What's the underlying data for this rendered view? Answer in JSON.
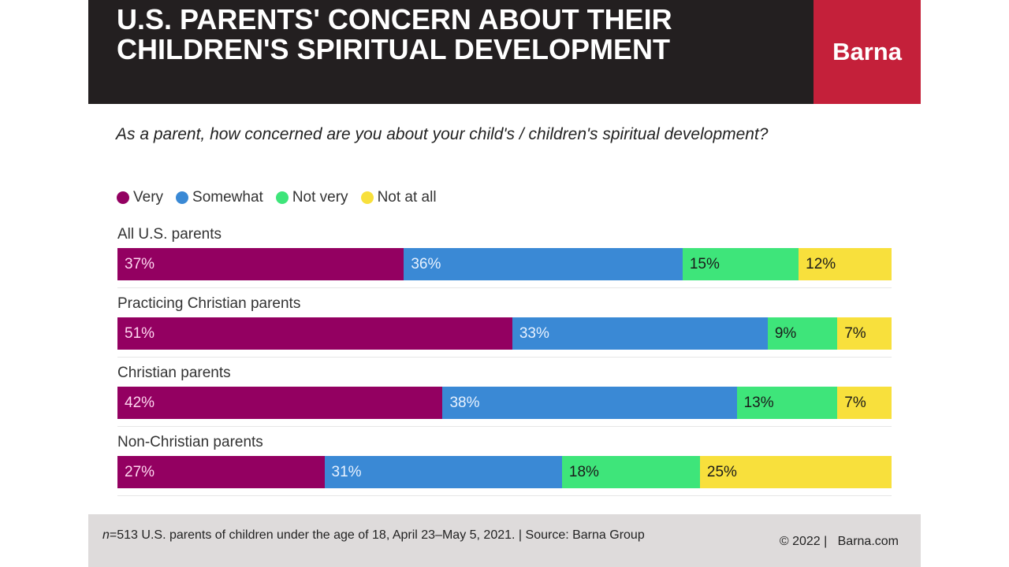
{
  "header": {
    "title": "U.S. PARENTS' CONCERN ABOUT THEIR CHILDREN'S SPIRITUAL DEVELOPMENT",
    "brand": "Barna"
  },
  "chart_data": {
    "type": "bar",
    "orientation": "horizontal-stacked-100",
    "title": "U.S. PARENTS' CONCERN ABOUT THEIR CHILDREN'S SPIRITUAL DEVELOPMENT",
    "subtitle": "As a parent, how concerned are you about your child's / children's spiritual development?",
    "categories": [
      "All U.S. parents",
      "Practicing Christian parents",
      "Christian parents",
      "Non-Christian parents"
    ],
    "series": [
      {
        "name": "Very",
        "color": "#930061",
        "label_color": "#ffd6f0",
        "values": [
          37,
          51,
          42,
          27
        ]
      },
      {
        "name": "Somewhat",
        "color": "#3a89d5",
        "label_color": "#e8f2ff",
        "values": [
          36,
          33,
          38,
          31
        ]
      },
      {
        "name": "Not very",
        "color": "#3ee57a",
        "label_color": "#1a1a1a",
        "values": [
          15,
          9,
          13,
          18
        ]
      },
      {
        "name": "Not at all",
        "color": "#f8e03c",
        "label_color": "#1a1a1a",
        "values": [
          12,
          7,
          7,
          25
        ]
      }
    ],
    "legend": "top-left",
    "value_suffix": "%"
  },
  "footer": {
    "note_prefix": "n",
    "note": "=513 U.S. parents of children under the age of 18, April 23–May 5, 2021. | Source: Barna Group",
    "copyright": "© 2022 |   Barna.com"
  }
}
